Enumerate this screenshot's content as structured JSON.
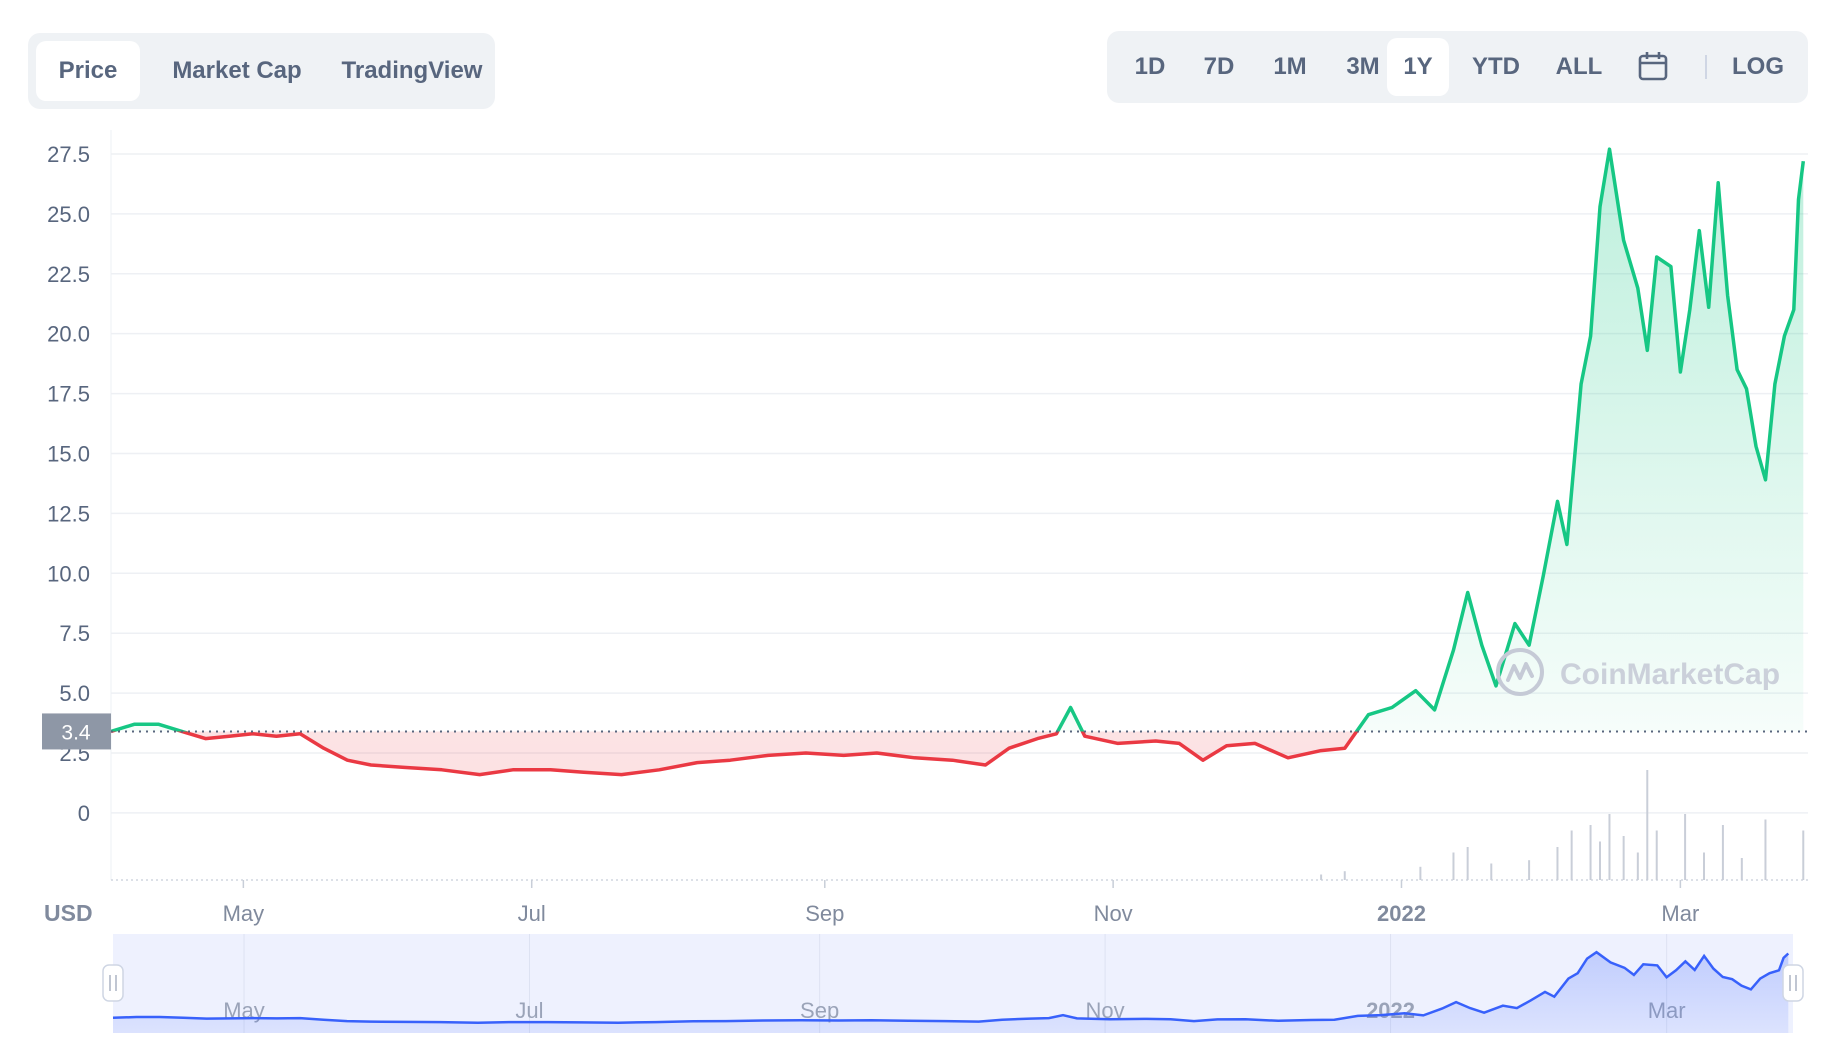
{
  "tabs_left": [
    {
      "label": "Price",
      "active": true
    },
    {
      "label": "Market Cap",
      "active": false
    },
    {
      "label": "TradingView",
      "active": false
    }
  ],
  "tabs_right": [
    {
      "label": "1D",
      "active": false
    },
    {
      "label": "7D",
      "active": false
    },
    {
      "label": "1M",
      "active": false
    },
    {
      "label": "3M",
      "active": false
    },
    {
      "label": "1Y",
      "active": true
    },
    {
      "label": "YTD",
      "active": false
    },
    {
      "label": "ALL",
      "active": false
    }
  ],
  "log_label": "LOG",
  "calendar_icon": "calendar-icon",
  "currency_label": "USD",
  "watermark": "CoinMarketCap",
  "colors": {
    "up": "#16c784",
    "down": "#ea3943",
    "navigator_line": "#3861fb",
    "baseline": "#58667e"
  },
  "chart_data": {
    "type": "line",
    "x_ticks": [
      "May",
      "Jul",
      "Sep",
      "Nov",
      "2022",
      "Mar"
    ],
    "y_ticks": [
      "0",
      "2.5",
      "5.0",
      "7.5",
      "10.0",
      "12.5",
      "15.0",
      "17.5",
      "20.0",
      "22.5",
      "25.0",
      "27.5"
    ],
    "ylim": [
      -2.8,
      28.5
    ],
    "xlim": [
      "2021-04-03",
      "2022-03-28"
    ],
    "baseline_value": 3.4,
    "baseline_label": "3.4",
    "price_series": [
      [
        "2021-04-03",
        3.4
      ],
      [
        "2021-04-08",
        3.7
      ],
      [
        "2021-04-13",
        3.7
      ],
      [
        "2021-04-18",
        3.4
      ],
      [
        "2021-04-23",
        3.1
      ],
      [
        "2021-04-28",
        3.2
      ],
      [
        "2021-05-03",
        3.3
      ],
      [
        "2021-05-08",
        3.2
      ],
      [
        "2021-05-13",
        3.3
      ],
      [
        "2021-05-18",
        2.7
      ],
      [
        "2021-05-23",
        2.2
      ],
      [
        "2021-05-28",
        2.0
      ],
      [
        "2021-06-04",
        1.9
      ],
      [
        "2021-06-12",
        1.8
      ],
      [
        "2021-06-20",
        1.6
      ],
      [
        "2021-06-27",
        1.8
      ],
      [
        "2021-07-05",
        1.8
      ],
      [
        "2021-07-12",
        1.7
      ],
      [
        "2021-07-20",
        1.6
      ],
      [
        "2021-07-28",
        1.8
      ],
      [
        "2021-08-05",
        2.1
      ],
      [
        "2021-08-12",
        2.2
      ],
      [
        "2021-08-20",
        2.4
      ],
      [
        "2021-08-28",
        2.5
      ],
      [
        "2021-09-05",
        2.4
      ],
      [
        "2021-09-12",
        2.5
      ],
      [
        "2021-09-20",
        2.3
      ],
      [
        "2021-09-28",
        2.2
      ],
      [
        "2021-10-05",
        2.0
      ],
      [
        "2021-10-10",
        2.7
      ],
      [
        "2021-10-16",
        3.1
      ],
      [
        "2021-10-20",
        3.3
      ],
      [
        "2021-10-23",
        4.4
      ],
      [
        "2021-10-26",
        3.2
      ],
      [
        "2021-11-02",
        2.9
      ],
      [
        "2021-11-10",
        3.0
      ],
      [
        "2021-11-15",
        2.9
      ],
      [
        "2021-11-20",
        2.2
      ],
      [
        "2021-11-25",
        2.8
      ],
      [
        "2021-12-01",
        2.9
      ],
      [
        "2021-12-08",
        2.3
      ],
      [
        "2021-12-15",
        2.6
      ],
      [
        "2021-12-20",
        2.7
      ],
      [
        "2021-12-25",
        4.1
      ],
      [
        "2021-12-30",
        4.4
      ],
      [
        "2022-01-04",
        5.1
      ],
      [
        "2022-01-08",
        4.3
      ],
      [
        "2022-01-12",
        6.8
      ],
      [
        "2022-01-15",
        9.2
      ],
      [
        "2022-01-18",
        7.0
      ],
      [
        "2022-01-21",
        5.3
      ],
      [
        "2022-01-25",
        7.9
      ],
      [
        "2022-01-28",
        7.0
      ],
      [
        "2022-01-31",
        9.9
      ],
      [
        "2022-02-03",
        13.0
      ],
      [
        "2022-02-05",
        11.2
      ],
      [
        "2022-02-08",
        17.9
      ],
      [
        "2022-02-10",
        19.9
      ],
      [
        "2022-02-12",
        25.3
      ],
      [
        "2022-02-14",
        27.7
      ],
      [
        "2022-02-17",
        23.9
      ],
      [
        "2022-02-20",
        21.9
      ],
      [
        "2022-02-22",
        19.3
      ],
      [
        "2022-02-24",
        23.2
      ],
      [
        "2022-02-27",
        22.8
      ],
      [
        "2022-03-01",
        18.4
      ],
      [
        "2022-03-03",
        21.0
      ],
      [
        "2022-03-05",
        24.3
      ],
      [
        "2022-03-07",
        21.1
      ],
      [
        "2022-03-09",
        26.3
      ],
      [
        "2022-03-11",
        21.6
      ],
      [
        "2022-03-13",
        18.5
      ],
      [
        "2022-03-15",
        17.7
      ],
      [
        "2022-03-17",
        15.3
      ],
      [
        "2022-03-19",
        13.9
      ],
      [
        "2022-03-21",
        17.9
      ],
      [
        "2022-03-23",
        19.9
      ],
      [
        "2022-03-25",
        21.0
      ],
      [
        "2022-03-26",
        25.6
      ],
      [
        "2022-03-27",
        27.2
      ]
    ],
    "volume_series": [
      [
        "2021-12-15",
        0.05
      ],
      [
        "2021-12-20",
        0.08
      ],
      [
        "2022-01-05",
        0.12
      ],
      [
        "2022-01-12",
        0.25
      ],
      [
        "2022-01-15",
        0.3
      ],
      [
        "2022-01-20",
        0.15
      ],
      [
        "2022-01-28",
        0.18
      ],
      [
        "2022-02-03",
        0.3
      ],
      [
        "2022-02-06",
        0.45
      ],
      [
        "2022-02-10",
        0.5
      ],
      [
        "2022-02-12",
        0.35
      ],
      [
        "2022-02-14",
        0.6
      ],
      [
        "2022-02-17",
        0.4
      ],
      [
        "2022-02-20",
        0.25
      ],
      [
        "2022-02-22",
        1.0
      ],
      [
        "2022-02-24",
        0.45
      ],
      [
        "2022-03-02",
        0.6
      ],
      [
        "2022-03-06",
        0.25
      ],
      [
        "2022-03-10",
        0.5
      ],
      [
        "2022-03-14",
        0.2
      ],
      [
        "2022-03-19",
        0.55
      ],
      [
        "2022-03-27",
        0.45
      ]
    ],
    "navigator_x_ticks": [
      "May",
      "Jul",
      "Sep",
      "Nov",
      "2022",
      "Mar"
    ]
  }
}
